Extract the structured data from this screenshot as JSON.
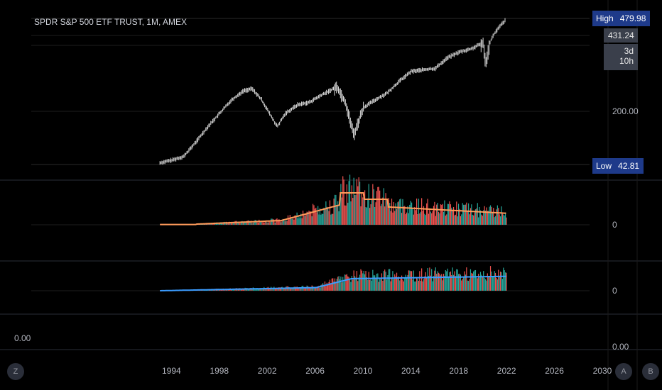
{
  "chart_title": "SPDR S&P 500 ETF TRUST, 1M, AMEX",
  "colors": {
    "background": "#000000",
    "price_line": "#d9d9d9",
    "volume_ma": "#ff9b5a",
    "indicator_ma": "#3b9cff",
    "bar_up": "#26a69a",
    "bar_down": "#ef5350",
    "tag_bg": "#1e3a8a",
    "grid": "#1b1b1b"
  },
  "price_axis": {
    "high_label": "High",
    "high_value": "479.98",
    "current_value": "431.24",
    "countdown": "3d 10h",
    "low_label": "Low",
    "low_value": "42.81",
    "mid_tick": "200.00"
  },
  "pane_axes": {
    "volume_zero": "0",
    "indicator_zero": "0",
    "bottom_left_value": "0.00",
    "bottom_right_value": "0.00"
  },
  "buttons": {
    "left": "Z",
    "auto": "A",
    "right": "B"
  },
  "chart_data": {
    "type": "line",
    "title": "SPDR S&P 500 ETF TRUST, 1M, AMEX",
    "x_ticks": [
      "1994",
      "1998",
      "2002",
      "2006",
      "2010",
      "2014",
      "2018",
      "2022",
      "2026",
      "2030"
    ],
    "series": [
      {
        "x": [
          1993.0,
          1994.0,
          1995.0,
          1996.0,
          1997.0,
          1998.0,
          1999.0,
          2000.0,
          2000.7,
          2001.5,
          2002.8,
          2003.5,
          2004.5,
          2005.5,
          2006.5,
          2007.8,
          2008.5,
          2009.2,
          2010.0,
          2011.0,
          2012.0,
          2013.0,
          2014.0,
          2015.0,
          2016.0,
          2017.0,
          2018.0,
          2019.0,
          2020.0,
          2020.2,
          2020.6,
          2021.0,
          2021.5,
          2021.9
        ],
        "values": [
          44,
          46,
          49,
          62,
          80,
          100,
          125,
          145,
          150,
          125,
          80,
          100,
          115,
          120,
          135,
          155,
          120,
          70,
          110,
          125,
          140,
          170,
          200,
          205,
          210,
          250,
          275,
          290,
          320,
          230,
          330,
          380,
          430,
          470
        ]
      }
    ],
    "high": 479.98,
    "low": 42.81,
    "last": 431.24,
    "log_scale": true
  }
}
